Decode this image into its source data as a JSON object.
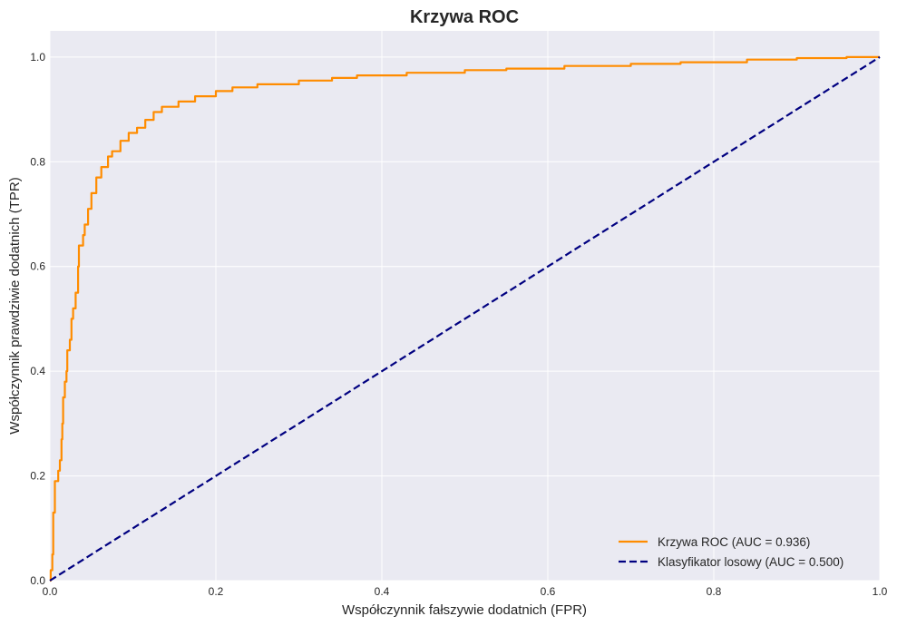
{
  "chart_data": {
    "type": "line",
    "title": "Krzywa ROC",
    "xlabel": "Współczynnik fałszywie dodatnich (FPR)",
    "ylabel": "Współczynnik prawdziwie dodatnich (TPR)",
    "xlim": [
      0.0,
      1.0
    ],
    "ylim": [
      0.0,
      1.05
    ],
    "x_ticks": [
      "0.0",
      "0.2",
      "0.4",
      "0.6",
      "0.8",
      "1.0"
    ],
    "y_ticks": [
      "0.0",
      "0.2",
      "0.4",
      "0.6",
      "0.8",
      "1.0"
    ],
    "grid": true,
    "legend_position": "bottom-right",
    "series": [
      {
        "name": "Krzywa ROC (AUC = 0.936)",
        "color": "#ff8c00",
        "style": "solid",
        "points": [
          [
            0.0,
            0.0
          ],
          [
            0.001,
            0.02
          ],
          [
            0.003,
            0.05
          ],
          [
            0.004,
            0.13
          ],
          [
            0.006,
            0.19
          ],
          [
            0.01,
            0.21
          ],
          [
            0.012,
            0.23
          ],
          [
            0.014,
            0.27
          ],
          [
            0.015,
            0.3
          ],
          [
            0.016,
            0.35
          ],
          [
            0.018,
            0.38
          ],
          [
            0.02,
            0.4
          ],
          [
            0.021,
            0.44
          ],
          [
            0.024,
            0.46
          ],
          [
            0.026,
            0.5
          ],
          [
            0.028,
            0.52
          ],
          [
            0.031,
            0.55
          ],
          [
            0.034,
            0.6
          ],
          [
            0.035,
            0.64
          ],
          [
            0.04,
            0.66
          ],
          [
            0.042,
            0.68
          ],
          [
            0.046,
            0.71
          ],
          [
            0.05,
            0.74
          ],
          [
            0.056,
            0.77
          ],
          [
            0.062,
            0.79
          ],
          [
            0.07,
            0.81
          ],
          [
            0.075,
            0.82
          ],
          [
            0.085,
            0.84
          ],
          [
            0.095,
            0.855
          ],
          [
            0.105,
            0.865
          ],
          [
            0.115,
            0.88
          ],
          [
            0.125,
            0.895
          ],
          [
            0.135,
            0.905
          ],
          [
            0.155,
            0.915
          ],
          [
            0.175,
            0.925
          ],
          [
            0.2,
            0.935
          ],
          [
            0.22,
            0.942
          ],
          [
            0.25,
            0.948
          ],
          [
            0.3,
            0.955
          ],
          [
            0.34,
            0.96
          ],
          [
            0.37,
            0.965
          ],
          [
            0.43,
            0.97
          ],
          [
            0.5,
            0.975
          ],
          [
            0.55,
            0.978
          ],
          [
            0.62,
            0.983
          ],
          [
            0.7,
            0.987
          ],
          [
            0.76,
            0.99
          ],
          [
            0.84,
            0.995
          ],
          [
            0.9,
            0.998
          ],
          [
            0.96,
            1.0
          ],
          [
            1.0,
            1.0
          ]
        ]
      },
      {
        "name": "Klasyfikator losowy (AUC = 0.500)",
        "color": "#000080",
        "style": "dashed",
        "points": [
          [
            0.0,
            0.0
          ],
          [
            1.0,
            1.0
          ]
        ]
      }
    ]
  }
}
